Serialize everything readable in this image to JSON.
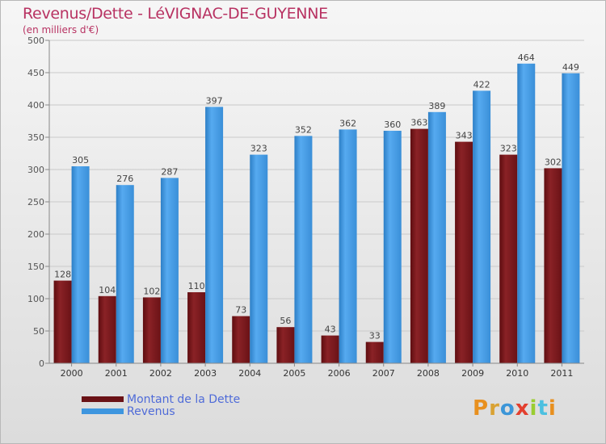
{
  "title": "Revenus/Dette - LéVIGNAC-DE-GUYENNE",
  "subtitle": "(en milliers d'€)",
  "colors": {
    "dette": "#7a1a1e",
    "revenus": "#3e96df",
    "title": "#b83262",
    "legend_text": "#4f6bd8",
    "logo": [
      "#e8901f",
      "#d9a233",
      "#3c96d8",
      "#e33f2e",
      "#9acd32",
      "#4cc0e0",
      "#e8901f"
    ]
  },
  "chart_data": {
    "type": "bar",
    "categories": [
      "2000",
      "2001",
      "2002",
      "2003",
      "2004",
      "2005",
      "2006",
      "2007",
      "2008",
      "2009",
      "2010",
      "2011"
    ],
    "series": [
      {
        "name": "Montant de la Dette",
        "values": [
          128,
          104,
          102,
          110,
          73,
          56,
          43,
          33,
          363,
          343,
          323,
          302
        ]
      },
      {
        "name": "Revenus",
        "values": [
          305,
          276,
          287,
          397,
          323,
          352,
          362,
          360,
          389,
          422,
          464,
          449
        ]
      }
    ],
    "yticks": [
      0,
      50,
      100,
      150,
      200,
      250,
      300,
      350,
      400,
      450,
      500
    ],
    "ylim": [
      0,
      500
    ],
    "grid": true,
    "legend_position": "bottom-left"
  },
  "legend": [
    {
      "label": "Montant de la Dette"
    },
    {
      "label": "Revenus"
    }
  ],
  "logo": {
    "text": "Proxiti"
  }
}
